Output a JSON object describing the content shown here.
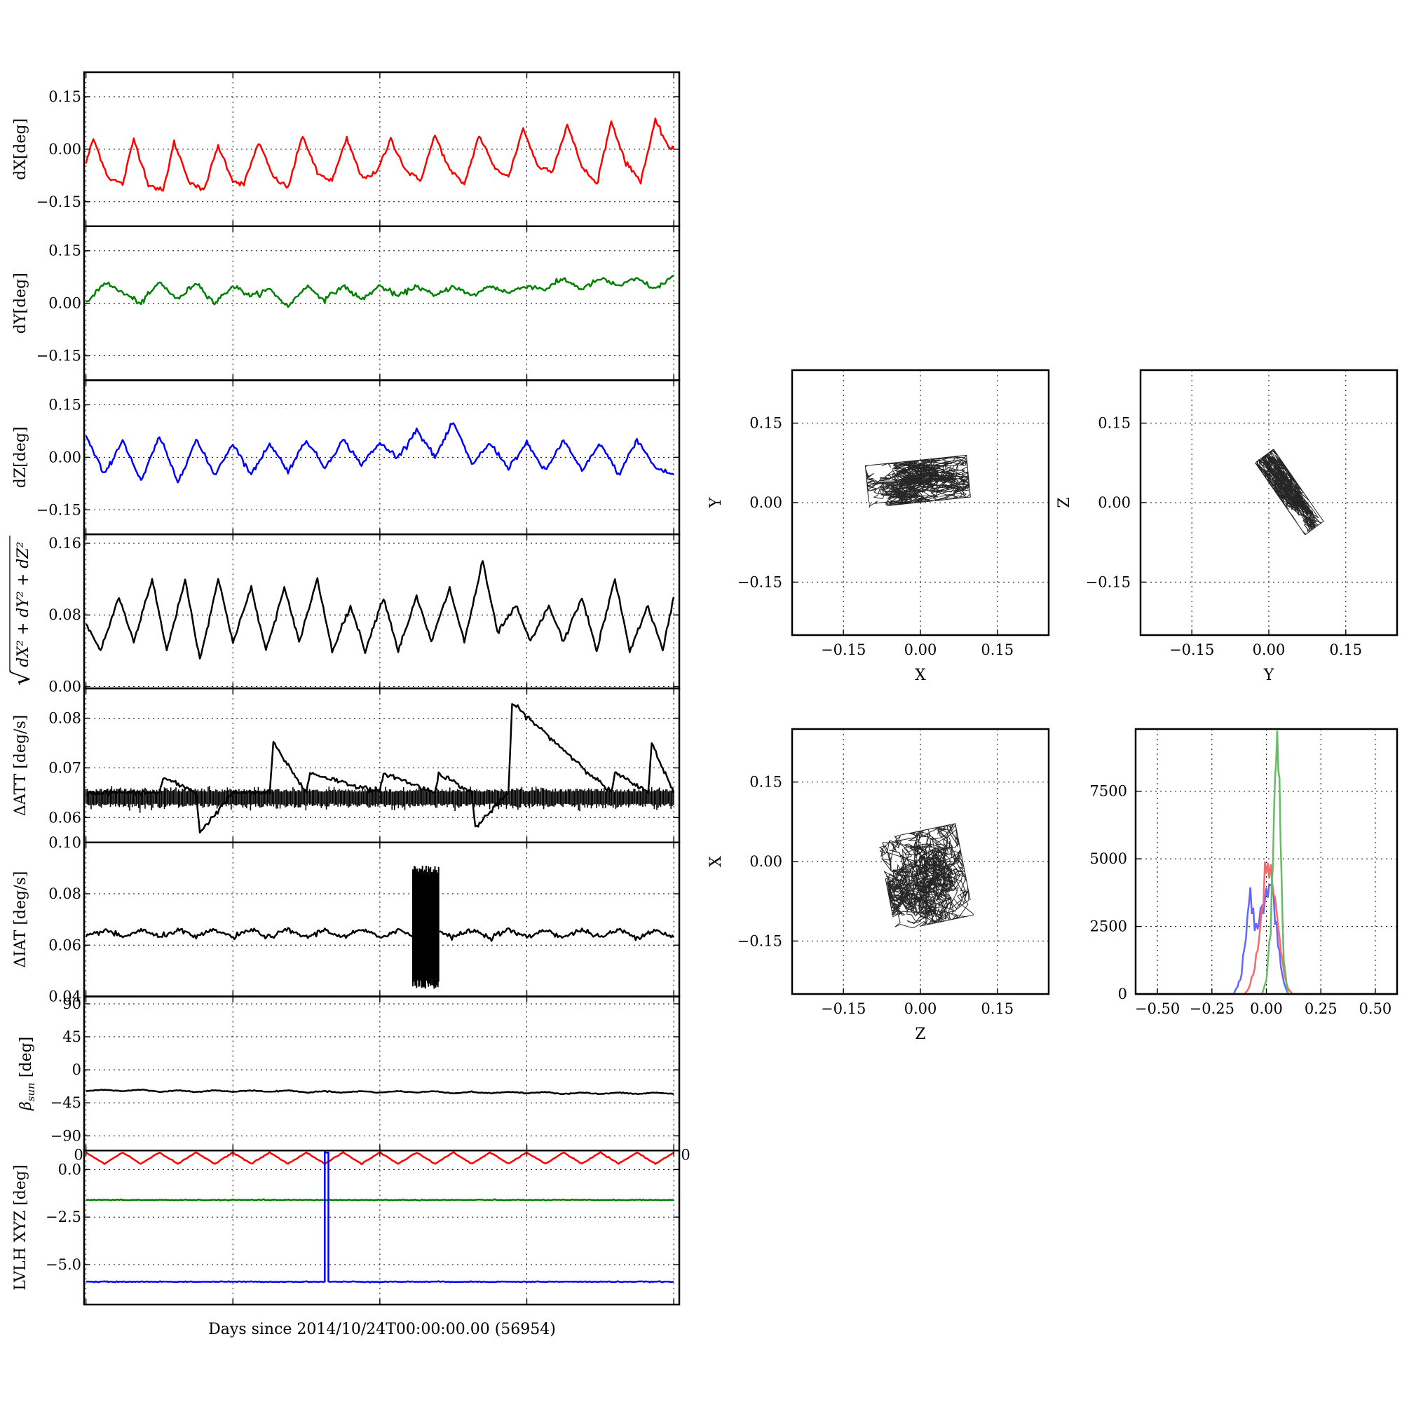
{
  "colors": {
    "x": "#ff0000",
    "y": "#008000",
    "z": "#0000ff",
    "mag": "#000000",
    "hist_x": "#ff6666",
    "hist_y": "#66bb66",
    "hist_z": "#6666ff"
  },
  "time_xlabel": "Days since 2014/10/24T00:00:00.00 (56954)",
  "chart_data": [
    {
      "id": "dX",
      "type": "line",
      "ylabel": "dX[deg]",
      "ylim": [
        -0.22,
        0.22
      ],
      "yticks": [
        "0.15",
        "0.00",
        "−0.15"
      ],
      "ytick_values": [
        0.15,
        0.0,
        -0.15
      ],
      "grid": true,
      "series": [
        {
          "color_key": "x",
          "x": [
            0,
            0.2,
            0.6,
            1.0,
            1.3,
            1.7,
            2.1,
            2.4,
            2.8,
            3.2,
            3.6,
            4.0,
            4.3,
            4.7,
            5.1,
            5.5,
            5.9,
            6.3,
            6.7,
            7.1,
            7.5,
            7.9,
            8.3,
            8.7,
            9.1,
            9.5,
            9.9,
            10.3,
            10.7,
            11.1,
            11.5,
            11.9,
            12.3,
            12.7,
            13.1,
            13.5,
            13.9,
            14.3,
            14.7,
            15.1,
            15.5,
            15.9,
            16.0
          ],
          "y": [
            -0.04,
            0.03,
            -0.08,
            -0.1,
            0.03,
            -0.1,
            -0.12,
            0.02,
            -0.09,
            -0.12,
            0.01,
            -0.09,
            -0.1,
            0.02,
            -0.08,
            -0.11,
            0.04,
            -0.07,
            -0.09,
            0.03,
            -0.08,
            -0.07,
            0.03,
            -0.06,
            -0.09,
            0.04,
            -0.06,
            -0.1,
            0.04,
            -0.05,
            -0.08,
            0.06,
            -0.05,
            -0.06,
            0.07,
            -0.05,
            -0.1,
            0.08,
            -0.04,
            -0.09,
            0.08,
            0.0,
            0.0
          ]
        }
      ]
    },
    {
      "id": "dY",
      "type": "line",
      "ylabel": "dY[deg]",
      "ylim": [
        -0.22,
        0.22
      ],
      "yticks": [
        "0.15",
        "0.00",
        "−0.15"
      ],
      "ytick_values": [
        0.15,
        0.0,
        -0.15
      ],
      "grid": true,
      "series": [
        {
          "color_key": "y",
          "x": [
            0,
            0.5,
            1.0,
            1.5,
            2.0,
            2.5,
            3.0,
            3.5,
            4.0,
            4.5,
            5.0,
            5.5,
            6.0,
            6.5,
            7.0,
            7.5,
            8.0,
            8.5,
            9.0,
            9.5,
            10.0,
            10.5,
            11.0,
            11.5,
            12.0,
            12.5,
            13.0,
            13.5,
            14.0,
            14.5,
            15.0,
            15.5,
            16.0
          ],
          "y": [
            0.0,
            0.06,
            0.03,
            0.0,
            0.06,
            0.01,
            0.06,
            0.0,
            0.05,
            0.02,
            0.04,
            -0.01,
            0.05,
            0.01,
            0.05,
            0.01,
            0.05,
            0.02,
            0.05,
            0.02,
            0.05,
            0.02,
            0.05,
            0.03,
            0.05,
            0.04,
            0.07,
            0.04,
            0.07,
            0.05,
            0.07,
            0.04,
            0.08
          ]
        }
      ]
    },
    {
      "id": "dZ",
      "type": "line",
      "ylabel": "dZ[deg]",
      "ylim": [
        -0.22,
        0.22
      ],
      "yticks": [
        "0.15",
        "0.00",
        "−0.15"
      ],
      "ytick_values": [
        0.15,
        0.0,
        -0.15
      ],
      "grid": true,
      "series": [
        {
          "color_key": "z",
          "x": [
            0,
            0.5,
            1.0,
            1.5,
            2.0,
            2.5,
            3.0,
            3.5,
            4.0,
            4.5,
            5.0,
            5.5,
            6.0,
            6.5,
            7.0,
            7.5,
            8.0,
            8.5,
            9.0,
            9.5,
            10.0,
            10.5,
            11.0,
            11.5,
            12.0,
            12.5,
            13.0,
            13.5,
            14.0,
            14.5,
            15.0,
            15.5,
            16.0
          ],
          "y": [
            0.06,
            -0.05,
            0.05,
            -0.07,
            0.06,
            -0.07,
            0.05,
            -0.05,
            0.04,
            -0.05,
            0.04,
            -0.04,
            0.05,
            -0.03,
            0.05,
            -0.02,
            0.04,
            0.0,
            0.08,
            0.0,
            0.1,
            -0.02,
            0.04,
            -0.03,
            0.04,
            -0.04,
            0.05,
            -0.04,
            0.04,
            -0.05,
            0.05,
            -0.03,
            -0.05
          ]
        }
      ]
    },
    {
      "id": "mag",
      "type": "line",
      "ylabel": "√(dX² + dY² + dZ²)",
      "ylim": [
        -0.002,
        0.17
      ],
      "yticks": [
        "0.16",
        "0.08",
        "0.00"
      ],
      "ytick_values": [
        0.16,
        0.08,
        0.0
      ],
      "grid": true,
      "series": [
        {
          "color_key": "mag",
          "x": [
            0,
            0.4,
            0.9,
            1.3,
            1.8,
            2.2,
            2.7,
            3.1,
            3.6,
            4.0,
            4.5,
            4.9,
            5.4,
            5.8,
            6.3,
            6.7,
            7.2,
            7.6,
            8.1,
            8.5,
            9.0,
            9.4,
            9.9,
            10.3,
            10.8,
            11.2,
            11.7,
            12.1,
            12.6,
            13.0,
            13.5,
            13.9,
            14.4,
            14.8,
            15.3,
            15.7,
            16.0
          ],
          "y": [
            0.07,
            0.04,
            0.1,
            0.05,
            0.12,
            0.04,
            0.12,
            0.03,
            0.12,
            0.05,
            0.11,
            0.04,
            0.11,
            0.05,
            0.12,
            0.04,
            0.09,
            0.04,
            0.1,
            0.04,
            0.1,
            0.05,
            0.11,
            0.05,
            0.14,
            0.06,
            0.09,
            0.05,
            0.09,
            0.05,
            0.1,
            0.04,
            0.12,
            0.04,
            0.09,
            0.04,
            0.1
          ]
        }
      ]
    },
    {
      "id": "dATT",
      "type": "line",
      "ylabel": "ΔATT [deg/s]",
      "ylim": [
        0.055,
        0.086
      ],
      "yticks": [
        "0.08",
        "0.07",
        "0.06"
      ],
      "ytick_values": [
        0.08,
        0.07,
        0.06
      ],
      "grid": true,
      "series": [
        {
          "color_key": "mag",
          "x": [
            0,
            2,
            2.1,
            3,
            3.1,
            4,
            5,
            5.1,
            6,
            6.1,
            8,
            8.1,
            9.5,
            9.6,
            10.5,
            10.6,
            11.5,
            11.6,
            14.3,
            14.4,
            15.3,
            15.4,
            16
          ],
          "y": [
            0.065,
            0.065,
            0.068,
            0.065,
            0.057,
            0.065,
            0.065,
            0.075,
            0.065,
            0.069,
            0.065,
            0.069,
            0.065,
            0.069,
            0.065,
            0.058,
            0.065,
            0.083,
            0.065,
            0.069,
            0.065,
            0.075,
            0.065
          ]
        }
      ]
    },
    {
      "id": "dIAT",
      "type": "line",
      "ylabel": "ΔIAT [deg/s]",
      "ylim": [
        0.04,
        0.1
      ],
      "yticks": [
        "0.10",
        "0.08",
        "0.06",
        "0.04"
      ],
      "ytick_values": [
        0.1,
        0.08,
        0.06,
        0.04
      ],
      "grid": true,
      "series": [
        {
          "color_key": "mag",
          "x": [
            0,
            0.5,
            1.0,
            1.5,
            2.0,
            2.5,
            3.0,
            3.5,
            4.0,
            4.5,
            5.0,
            5.5,
            6.0,
            6.5,
            7.0,
            7.5,
            8.0,
            8.5,
            9.0,
            9.5,
            10.0,
            10.5,
            11.0,
            11.5,
            12.0,
            12.5,
            13.0,
            13.5,
            14.0,
            14.5,
            15.0,
            15.5,
            16.0
          ],
          "y": [
            0.063,
            0.066,
            0.063,
            0.066,
            0.063,
            0.066,
            0.063,
            0.066,
            0.063,
            0.066,
            0.063,
            0.066,
            0.063,
            0.066,
            0.063,
            0.066,
            0.063,
            0.066,
            0.063,
            0.066,
            0.063,
            0.066,
            0.063,
            0.066,
            0.063,
            0.066,
            0.063,
            0.066,
            0.063,
            0.066,
            0.063,
            0.066,
            0.063
          ]
        }
      ],
      "bursts": [
        {
          "x0": 8.9,
          "x1": 9.6,
          "ymin": 0.043,
          "ymax": 0.091
        }
      ]
    },
    {
      "id": "beta",
      "type": "line",
      "ylabel": "β_sun [deg]",
      "ylim": [
        -110,
        100
      ],
      "yticks": [
        "90",
        "45",
        "0",
        "−45",
        "−90"
      ],
      "ytick_values": [
        90,
        45,
        0,
        -45,
        -90
      ],
      "grid": true,
      "series": [
        {
          "color_key": "mag",
          "x": [
            0,
            0.5,
            1.0,
            1.5,
            2.0,
            2.5,
            3.0,
            3.5,
            4.0,
            4.5,
            5.0,
            5.5,
            6.0,
            6.5,
            7.0,
            7.5,
            8.0,
            8.5,
            9.0,
            9.5,
            10.0,
            10.5,
            11.0,
            11.5,
            12.0,
            12.5,
            13.0,
            13.5,
            14.0,
            14.5,
            15.0,
            15.5,
            16.0
          ],
          "y": [
            -29,
            -27,
            -29,
            -27,
            -30,
            -28,
            -30,
            -28,
            -30,
            -28,
            -30,
            -28,
            -31,
            -29,
            -31,
            -29,
            -31,
            -29,
            -31,
            -29,
            -32,
            -30,
            -32,
            -30,
            -32,
            -30,
            -33,
            -31,
            -33,
            -31,
            -33,
            -31,
            -33
          ]
        }
      ]
    },
    {
      "id": "lvlh",
      "type": "line",
      "ylabel": "LVLH XYZ [deg]",
      "ylim": [
        -7.1,
        1.0
      ],
      "yticks": [
        "0.0",
        "−2.5",
        "−5.0"
      ],
      "ytick_values": [
        0.0,
        -2.5,
        -5.0
      ],
      "grid": true,
      "series": [
        {
          "color_key": "x",
          "x": [
            0,
            0.5,
            1.0,
            1.5,
            2.0,
            2.5,
            3.0,
            3.5,
            4.0,
            4.5,
            5.0,
            5.5,
            6.0,
            6.5,
            7.0,
            7.5,
            8.0,
            8.5,
            9.0,
            9.5,
            10.0,
            10.5,
            11.0,
            11.5,
            12.0,
            12.5,
            13.0,
            13.5,
            14.0,
            14.5,
            15.0,
            15.5,
            16.0
          ],
          "y": [
            0.9,
            0.3,
            0.9,
            0.3,
            0.9,
            0.3,
            0.9,
            0.3,
            0.9,
            0.3,
            0.9,
            0.3,
            0.9,
            0.3,
            0.9,
            0.3,
            0.9,
            0.3,
            0.9,
            0.3,
            0.9,
            0.3,
            0.9,
            0.3,
            0.9,
            0.3,
            0.9,
            0.3,
            0.9,
            0.3,
            0.9,
            0.3,
            0.9
          ]
        },
        {
          "color_key": "y",
          "x": [
            0,
            4,
            8,
            12,
            16
          ],
          "y": [
            -1.6,
            -1.6,
            -1.6,
            -1.6,
            -1.6
          ]
        },
        {
          "color_key": "z",
          "x": [
            0,
            4,
            6.5,
            6.5,
            6.6,
            6.6,
            8,
            12,
            16
          ],
          "y": [
            -5.9,
            -5.9,
            -5.9,
            0.9,
            0.9,
            -5.9,
            -5.9,
            -5.9,
            -5.9
          ]
        }
      ],
      "xtick_labels_left": "0",
      "xtick_labels_right": "0"
    },
    {
      "id": "scatter_xy",
      "type": "scatter",
      "xlabel": "X",
      "ylabel": "Y",
      "lim": [
        -0.25,
        0.25
      ],
      "ticks": [
        "−0.15",
        "0.00",
        "0.15"
      ],
      "tick_values": [
        -0.15,
        0.0,
        0.15
      ],
      "grid": true,
      "cloud": {
        "cx": -0.005,
        "cy": 0.04,
        "sx": 0.045,
        "sy": 0.018,
        "rot": 0.1
      }
    },
    {
      "id": "scatter_yz",
      "type": "scatter",
      "xlabel": "Y",
      "ylabel": "Z",
      "lim": [
        -0.25,
        0.25
      ],
      "ticks": [
        "−0.15",
        "0.00",
        "0.15"
      ],
      "tick_values": [
        -0.15,
        0.0,
        0.15
      ],
      "grid": true,
      "cloud": {
        "cx": 0.04,
        "cy": 0.02,
        "sx": 0.038,
        "sy": 0.01,
        "rot": -0.95
      }
    },
    {
      "id": "scatter_zx",
      "type": "scatter",
      "xlabel": "Z",
      "ylabel": "X",
      "lim": [
        -0.25,
        0.25
      ],
      "ticks": [
        "−0.15",
        "0.00",
        "0.15"
      ],
      "tick_values": [
        -0.15,
        0.0,
        0.15
      ],
      "grid": true,
      "cloud": {
        "cx": 0.01,
        "cy": -0.03,
        "sx": 0.035,
        "sy": 0.04,
        "rot": 0.2
      }
    },
    {
      "id": "hist",
      "type": "area",
      "xlim": [
        -0.6,
        0.6
      ],
      "ylim": [
        0,
        9800
      ],
      "xticks": [
        "−0.50",
        "−0.25",
        "0.00",
        "0.25",
        "0.50"
      ],
      "xtick_values": [
        -0.5,
        -0.25,
        0.0,
        0.25,
        0.5
      ],
      "yticks": [
        "7500",
        "5000",
        "2500",
        "0"
      ],
      "ytick_values": [
        7500,
        5000,
        2500,
        0
      ],
      "grid": true,
      "series": [
        {
          "color_key": "hist_z",
          "x": [
            -0.6,
            -0.15,
            -0.12,
            -0.1,
            -0.08,
            -0.06,
            -0.04,
            -0.02,
            0.0,
            0.02,
            0.04,
            0.06,
            0.08,
            0.1,
            0.6
          ],
          "y": [
            0,
            0,
            500,
            1800,
            3500,
            3000,
            2400,
            3200,
            4000,
            4300,
            3000,
            1400,
            400,
            0,
            0
          ]
        },
        {
          "color_key": "hist_x",
          "x": [
            -0.6,
            -0.1,
            -0.08,
            -0.06,
            -0.04,
            -0.02,
            0.0,
            0.02,
            0.04,
            0.06,
            0.08,
            0.1,
            0.12,
            0.6
          ],
          "y": [
            0,
            0,
            200,
            800,
            1600,
            2800,
            4600,
            4900,
            3600,
            2000,
            800,
            200,
            0,
            0
          ]
        },
        {
          "color_key": "hist_y",
          "x": [
            -0.6,
            -0.02,
            0.0,
            0.02,
            0.03,
            0.04,
            0.05,
            0.06,
            0.07,
            0.08,
            0.1,
            0.6
          ],
          "y": [
            0,
            0,
            500,
            2500,
            5000,
            7500,
            9100,
            7300,
            4200,
            1200,
            0,
            0
          ]
        }
      ]
    }
  ]
}
